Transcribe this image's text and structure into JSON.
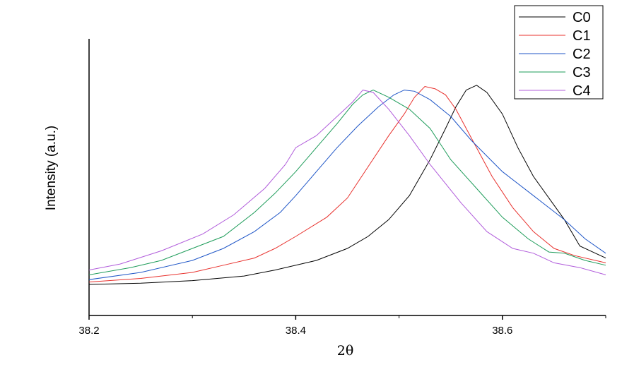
{
  "chart_data": {
    "type": "line",
    "xlabel": "2θ",
    "ylabel": "Intensity (a.u.)",
    "xlim": [
      38.2,
      38.7
    ],
    "ylim": [
      0,
      1
    ],
    "x_ticks": [
      38.2,
      38.4,
      38.6
    ],
    "x_tick_labels": [
      "38.2",
      "38.4",
      "38.6"
    ],
    "y_ticks_shown": false,
    "grid": false,
    "legend_position": "top-right",
    "series": [
      {
        "name": "C0",
        "color": "#000000",
        "points": [
          [
            38.2,
            0.05
          ],
          [
            38.25,
            0.055
          ],
          [
            38.3,
            0.066
          ],
          [
            38.35,
            0.085
          ],
          [
            38.38,
            0.11
          ],
          [
            38.42,
            0.15
          ],
          [
            38.45,
            0.2
          ],
          [
            38.47,
            0.25
          ],
          [
            38.49,
            0.32
          ],
          [
            38.51,
            0.42
          ],
          [
            38.53,
            0.57
          ],
          [
            38.545,
            0.7
          ],
          [
            38.555,
            0.79
          ],
          [
            38.565,
            0.86
          ],
          [
            38.575,
            0.88
          ],
          [
            38.585,
            0.85
          ],
          [
            38.6,
            0.76
          ],
          [
            38.615,
            0.62
          ],
          [
            38.63,
            0.5
          ],
          [
            38.645,
            0.41
          ],
          [
            38.66,
            0.32
          ],
          [
            38.675,
            0.21
          ],
          [
            38.69,
            0.18
          ],
          [
            38.7,
            0.16
          ]
        ]
      },
      {
        "name": "C1",
        "color": "#e8312d",
        "points": [
          [
            38.2,
            0.06
          ],
          [
            38.25,
            0.075
          ],
          [
            38.3,
            0.1
          ],
          [
            38.33,
            0.13
          ],
          [
            38.36,
            0.16
          ],
          [
            38.38,
            0.2
          ],
          [
            38.4,
            0.25
          ],
          [
            38.43,
            0.33
          ],
          [
            38.45,
            0.41
          ],
          [
            38.47,
            0.54
          ],
          [
            38.49,
            0.67
          ],
          [
            38.505,
            0.76
          ],
          [
            38.515,
            0.83
          ],
          [
            38.525,
            0.875
          ],
          [
            38.535,
            0.865
          ],
          [
            38.545,
            0.84
          ],
          [
            38.555,
            0.78
          ],
          [
            38.57,
            0.66
          ],
          [
            38.59,
            0.5
          ],
          [
            38.61,
            0.37
          ],
          [
            38.63,
            0.27
          ],
          [
            38.65,
            0.2
          ],
          [
            38.67,
            0.17
          ],
          [
            38.7,
            0.14
          ]
        ]
      },
      {
        "name": "C2",
        "color": "#1f56c7",
        "points": [
          [
            38.2,
            0.07
          ],
          [
            38.25,
            0.1
          ],
          [
            38.3,
            0.15
          ],
          [
            38.33,
            0.2
          ],
          [
            38.36,
            0.27
          ],
          [
            38.385,
            0.35
          ],
          [
            38.4,
            0.42
          ],
          [
            38.42,
            0.52
          ],
          [
            38.44,
            0.62
          ],
          [
            38.46,
            0.71
          ],
          [
            38.48,
            0.79
          ],
          [
            38.495,
            0.84
          ],
          [
            38.505,
            0.86
          ],
          [
            38.515,
            0.855
          ],
          [
            38.53,
            0.82
          ],
          [
            38.55,
            0.75
          ],
          [
            38.57,
            0.65
          ],
          [
            38.6,
            0.52
          ],
          [
            38.63,
            0.42
          ],
          [
            38.66,
            0.32
          ],
          [
            38.68,
            0.24
          ],
          [
            38.7,
            0.18
          ]
        ]
      },
      {
        "name": "C3",
        "color": "#1e9c5a",
        "points": [
          [
            38.2,
            0.09
          ],
          [
            38.24,
            0.12
          ],
          [
            38.27,
            0.15
          ],
          [
            38.3,
            0.2
          ],
          [
            38.33,
            0.25
          ],
          [
            38.36,
            0.35
          ],
          [
            38.38,
            0.43
          ],
          [
            38.4,
            0.52
          ],
          [
            38.42,
            0.62
          ],
          [
            38.44,
            0.72
          ],
          [
            38.455,
            0.8
          ],
          [
            38.465,
            0.84
          ],
          [
            38.475,
            0.86
          ],
          [
            38.49,
            0.83
          ],
          [
            38.51,
            0.78
          ],
          [
            38.53,
            0.7
          ],
          [
            38.55,
            0.57
          ],
          [
            38.575,
            0.45
          ],
          [
            38.6,
            0.33
          ],
          [
            38.625,
            0.24
          ],
          [
            38.645,
            0.185
          ],
          [
            38.66,
            0.18
          ],
          [
            38.68,
            0.15
          ],
          [
            38.7,
            0.13
          ]
        ]
      },
      {
        "name": "C4",
        "color": "#b15cdb",
        "points": [
          [
            38.2,
            0.11
          ],
          [
            38.23,
            0.135
          ],
          [
            38.27,
            0.19
          ],
          [
            38.31,
            0.26
          ],
          [
            38.34,
            0.34
          ],
          [
            38.37,
            0.45
          ],
          [
            38.39,
            0.55
          ],
          [
            38.4,
            0.62
          ],
          [
            38.42,
            0.67
          ],
          [
            38.44,
            0.75
          ],
          [
            38.455,
            0.81
          ],
          [
            38.465,
            0.86
          ],
          [
            38.475,
            0.85
          ],
          [
            38.49,
            0.78
          ],
          [
            38.51,
            0.67
          ],
          [
            38.53,
            0.55
          ],
          [
            38.56,
            0.39
          ],
          [
            38.585,
            0.27
          ],
          [
            38.61,
            0.2
          ],
          [
            38.63,
            0.18
          ],
          [
            38.65,
            0.14
          ],
          [
            38.675,
            0.12
          ],
          [
            38.7,
            0.09
          ]
        ]
      }
    ]
  }
}
